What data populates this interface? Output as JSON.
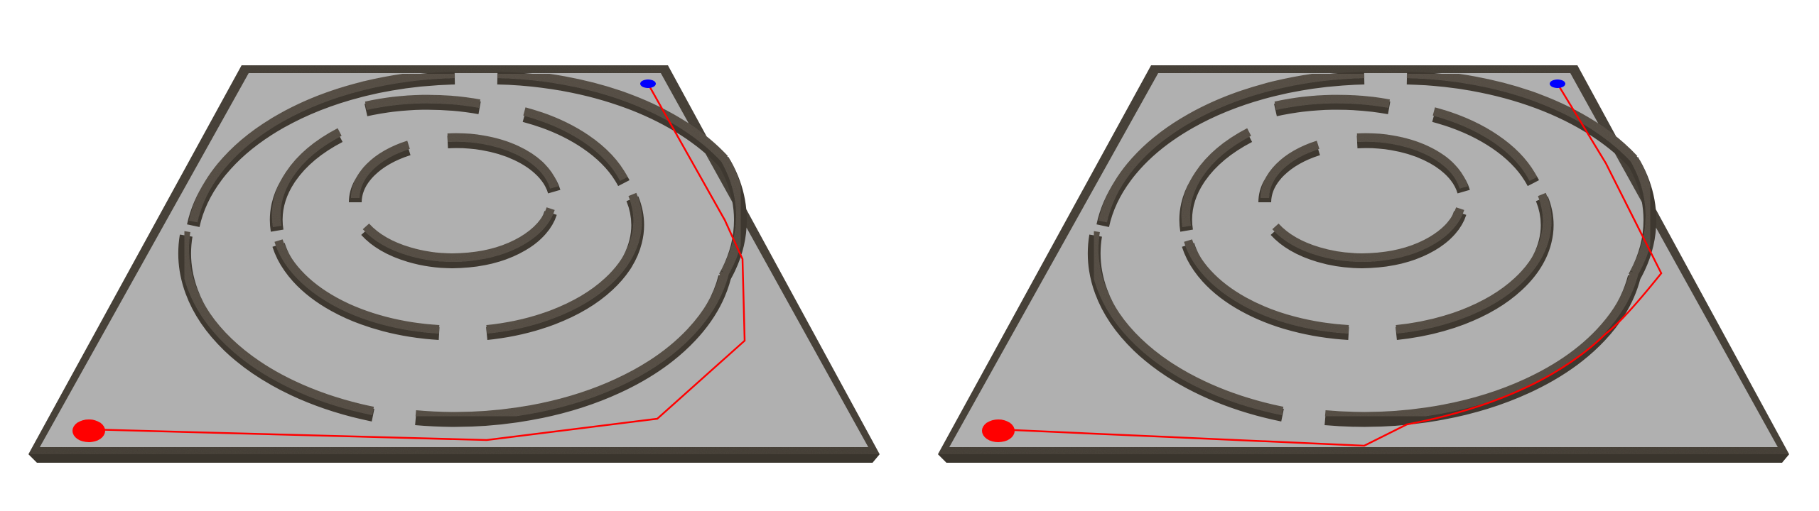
{
  "panels": [
    {
      "id": "left",
      "path_type": "polyline"
    },
    {
      "id": "right",
      "path_type": "smooth"
    }
  ],
  "colors": {
    "background": "#ffffff",
    "floor": "#b0b0b0",
    "wall_top": "#5a5248",
    "wall_side": "#3e3830",
    "frame": "#4a443b",
    "start_marker": "#ff0000",
    "goal_marker": "#0000ff",
    "path": "#ff0000"
  },
  "markers": {
    "start": "start-marker",
    "goal": "goal-marker"
  }
}
